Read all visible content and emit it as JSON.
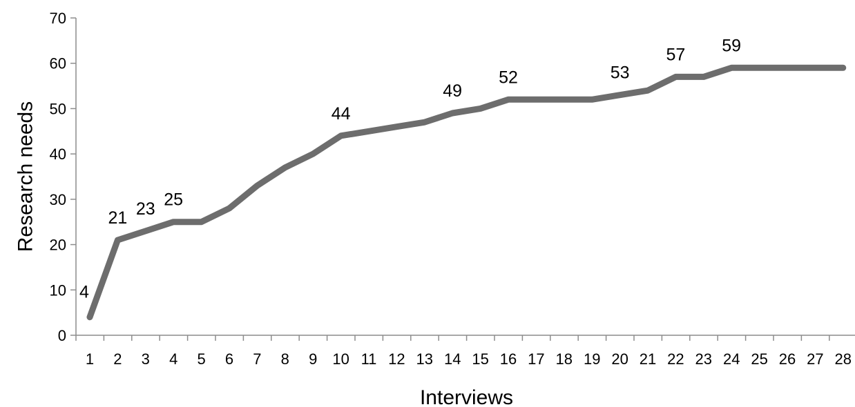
{
  "chart_data": {
    "type": "line",
    "xlabel": "Interviews",
    "ylabel": "Research needs",
    "x": [
      1,
      2,
      3,
      4,
      5,
      6,
      7,
      8,
      9,
      10,
      11,
      12,
      13,
      14,
      15,
      16,
      17,
      18,
      19,
      20,
      21,
      22,
      23,
      24,
      25,
      26,
      27,
      28
    ],
    "series": [
      {
        "values": [
          4,
          21,
          23,
          25,
          25,
          28,
          33,
          37,
          40,
          44,
          45,
          46,
          47,
          49,
          50,
          52,
          52,
          52,
          52,
          53,
          54,
          57,
          57,
          59,
          59,
          59,
          59,
          59
        ],
        "color": "#6d6d6d"
      }
    ],
    "data_labels": [
      {
        "x": 1,
        "text": "4"
      },
      {
        "x": 2,
        "text": "21"
      },
      {
        "x": 3,
        "text": "23"
      },
      {
        "x": 4,
        "text": "25"
      },
      {
        "x": 10,
        "text": "44"
      },
      {
        "x": 14,
        "text": "49"
      },
      {
        "x": 16,
        "text": "52"
      },
      {
        "x": 20,
        "text": "53"
      },
      {
        "x": 22,
        "text": "57"
      },
      {
        "x": 24,
        "text": "59"
      }
    ],
    "ylim": [
      0,
      70
    ],
    "yticks": [
      0,
      10,
      20,
      30,
      40,
      50,
      60,
      70
    ],
    "grid": false,
    "legend": "none"
  }
}
